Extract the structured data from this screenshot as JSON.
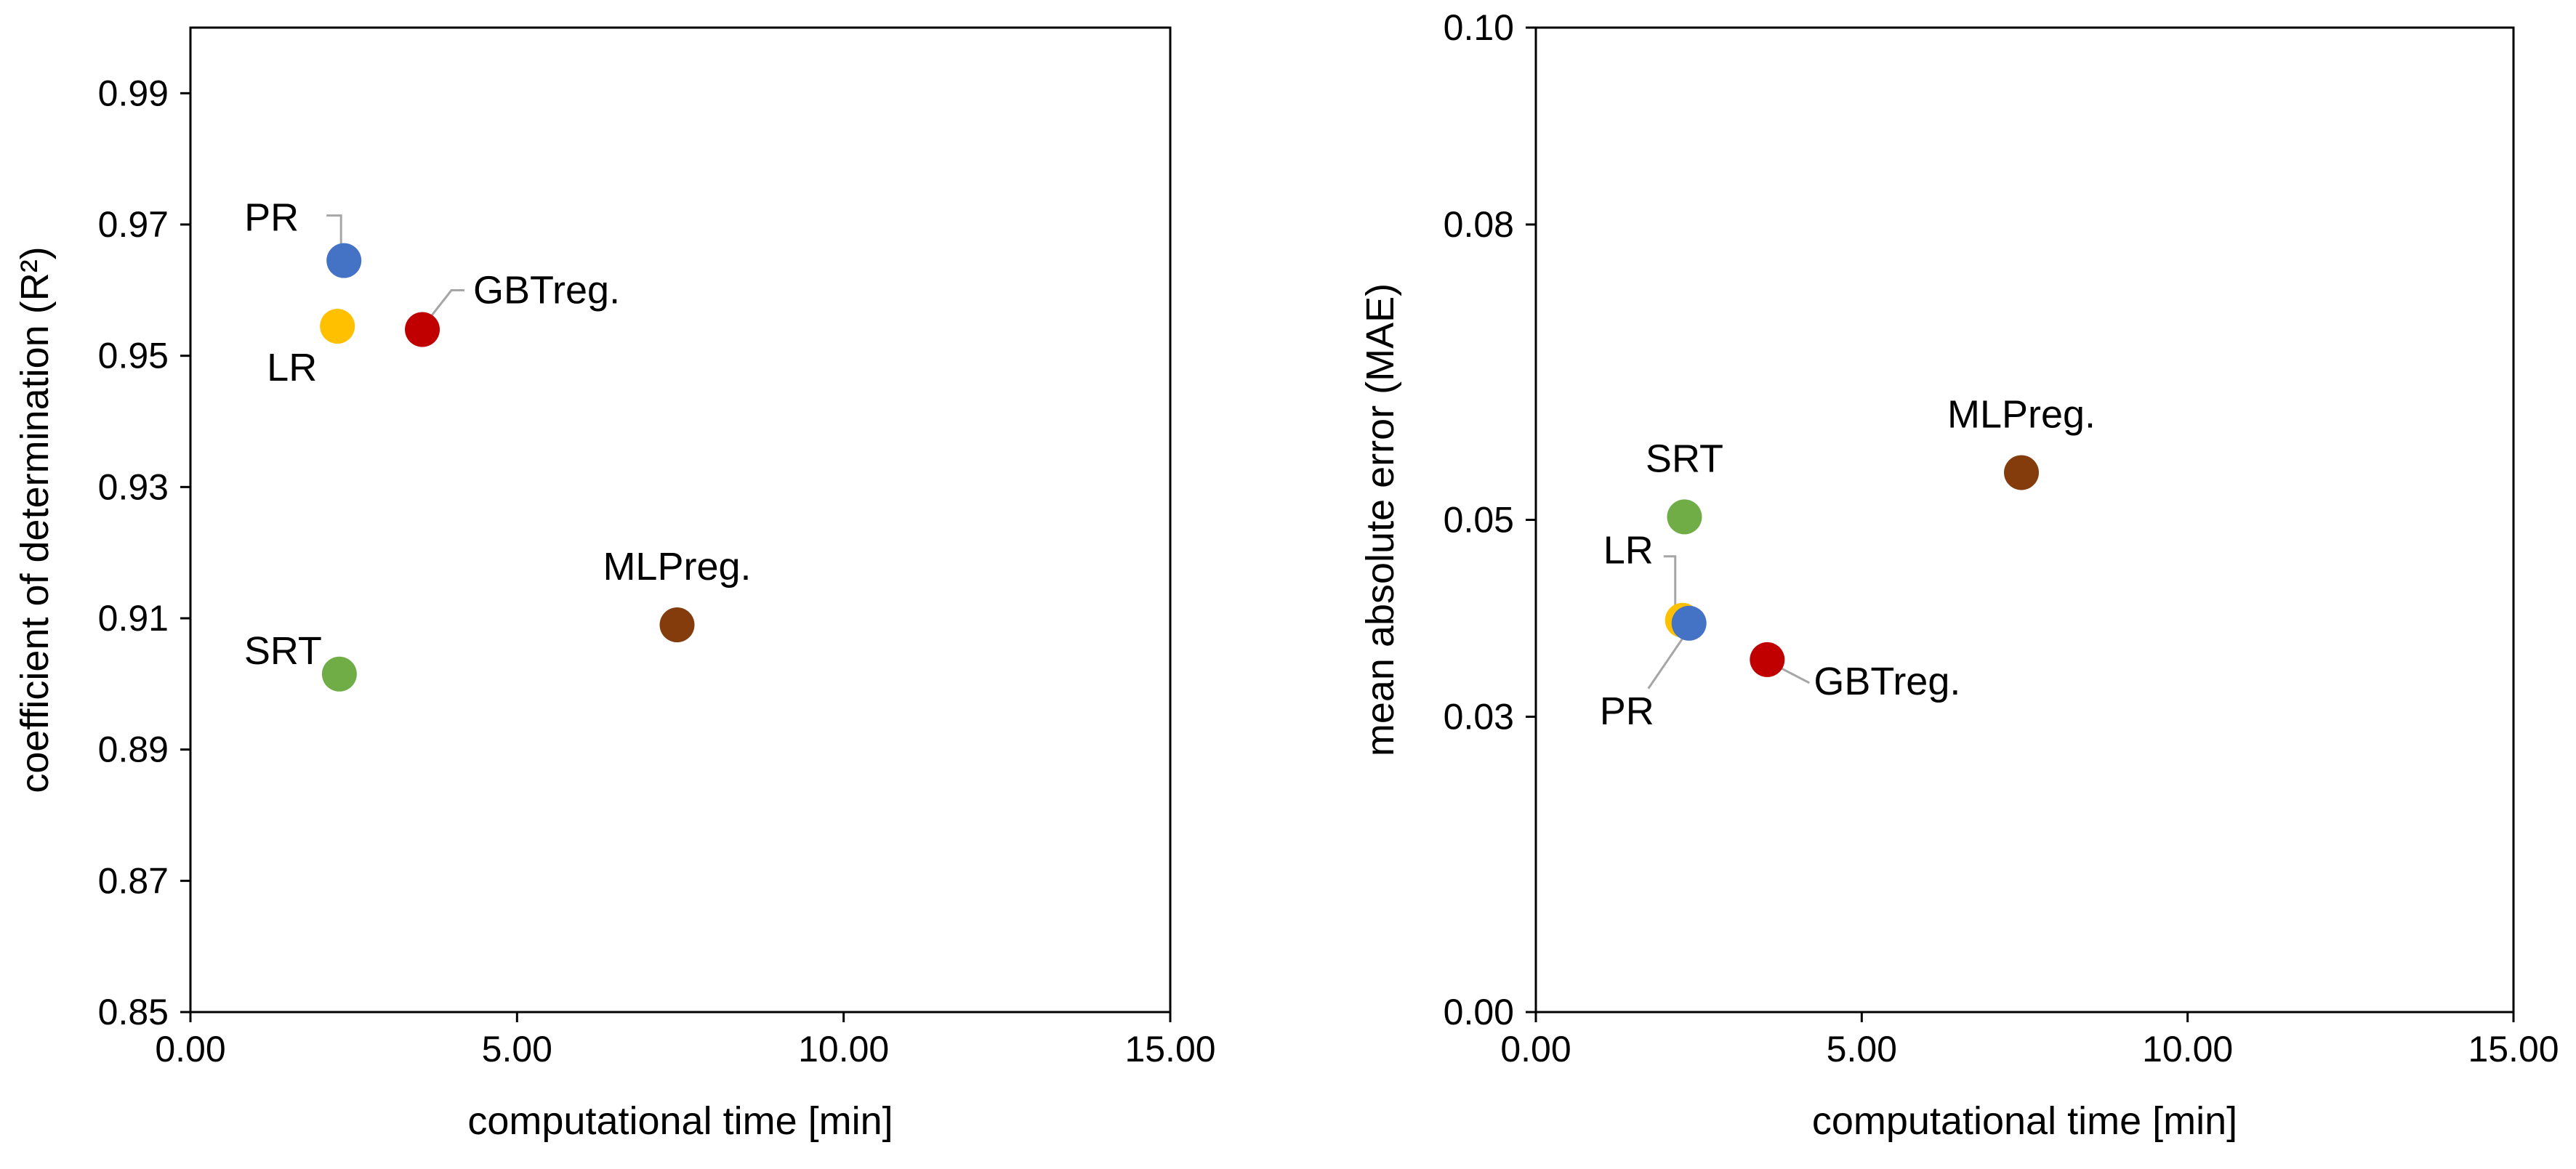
{
  "chart_data": [
    {
      "type": "scatter",
      "xlabel": "computational time [min]",
      "ylabel": "coefficient of determination (R²)",
      "xlim": [
        0,
        15
      ],
      "ylim": [
        0.85,
        1.0
      ],
      "x_ticks": [
        "0.00",
        "5.00",
        "10.00",
        "15.00"
      ],
      "y_ticks": [
        "0.85",
        "0.87",
        "0.89",
        "0.91",
        "0.93",
        "0.95",
        "0.97",
        "0.99"
      ],
      "grid": false,
      "points": [
        {
          "name": "PR",
          "x": 2.35,
          "y": 0.9645,
          "color": "#4472C4"
        },
        {
          "name": "LR",
          "x": 2.25,
          "y": 0.9545,
          "color": "#FFC000"
        },
        {
          "name": "GBTreg.",
          "x": 3.55,
          "y": 0.954,
          "color": "#C00000"
        },
        {
          "name": "MLPreg.",
          "x": 7.45,
          "y": 0.909,
          "color": "#843C0C"
        },
        {
          "name": "SRT",
          "x": 2.28,
          "y": 0.9015,
          "color": "#70AD47"
        }
      ]
    },
    {
      "type": "scatter",
      "xlabel": "computational time [min]",
      "ylabel": "mean absolute error (MAE)",
      "xlim": [
        0,
        15
      ],
      "ylim": [
        0.0,
        0.1
      ],
      "x_ticks": [
        "0.00",
        "5.00",
        "10.00",
        "15.00"
      ],
      "y_ticks": [
        "0.00",
        "0.03",
        "0.05",
        "0.08",
        "0.10"
      ],
      "grid": false,
      "points": [
        {
          "name": "LR",
          "x": 2.25,
          "y": 0.0398,
          "color": "#FFC000"
        },
        {
          "name": "PR",
          "x": 2.35,
          "y": 0.0395,
          "color": "#4472C4"
        },
        {
          "name": "SRT",
          "x": 2.28,
          "y": 0.0503,
          "color": "#70AD47"
        },
        {
          "name": "GBTreg.",
          "x": 3.55,
          "y": 0.0358,
          "color": "#C00000"
        },
        {
          "name": "MLPreg.",
          "x": 7.45,
          "y": 0.0548,
          "color": "#843C0C"
        }
      ]
    }
  ]
}
